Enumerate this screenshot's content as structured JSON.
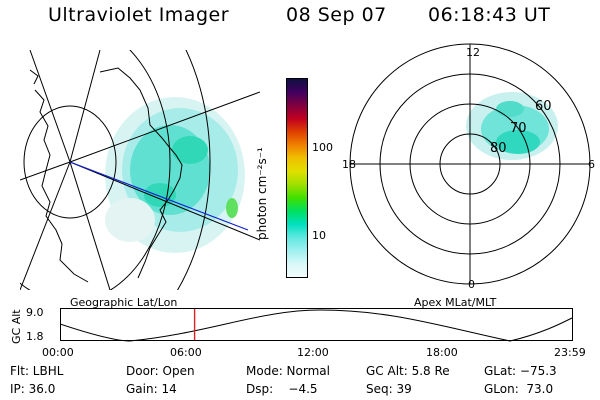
{
  "header": {
    "title": "Ultraviolet Imager",
    "date": "08 Sep 07",
    "time": "06:18:43 UT"
  },
  "colorbar": {
    "label": "photon cm⁻²s⁻¹",
    "ticks": [
      "100",
      "10"
    ],
    "colors": [
      "#101040",
      "#400060",
      "#800040",
      "#c00020",
      "#e04000",
      "#f08000",
      "#f0c000",
      "#e0e000",
      "#a0e000",
      "#40e000",
      "#00e060",
      "#00e0c0",
      "#60e8e0",
      "#a0f0f0",
      "#d8f8f8",
      "#f4fcfc"
    ]
  },
  "left_map": {
    "label": "Geographic Lat/Lon"
  },
  "right_map": {
    "label": "Apex MLat/MLT",
    "mlt_labels": {
      "top": "12",
      "left": "18",
      "right": "6",
      "bottom": "0"
    },
    "lat_labels": [
      "60",
      "70",
      "80"
    ]
  },
  "altitude_plot": {
    "ylabel": "GC Alt",
    "yticks": [
      "9.0",
      "1.8"
    ],
    "xticks": [
      "00:00",
      "06:00",
      "12:00",
      "18:00",
      "23:59"
    ],
    "current_time_hours": 6.31
  },
  "status": {
    "row1": {
      "filter": "Flt: LBHL",
      "door": "Door: Open",
      "mode": "Mode: Normal",
      "gc_alt": "GC Alt: 5.8 Re",
      "glat": "GLat: −75.3"
    },
    "row2": {
      "ip": "IP: 36.0",
      "gain": "Gain: 14",
      "dsp": "Dsp:    −4.5",
      "seq": "Seq: 39",
      "glon": "GLon:  73.0"
    }
  }
}
